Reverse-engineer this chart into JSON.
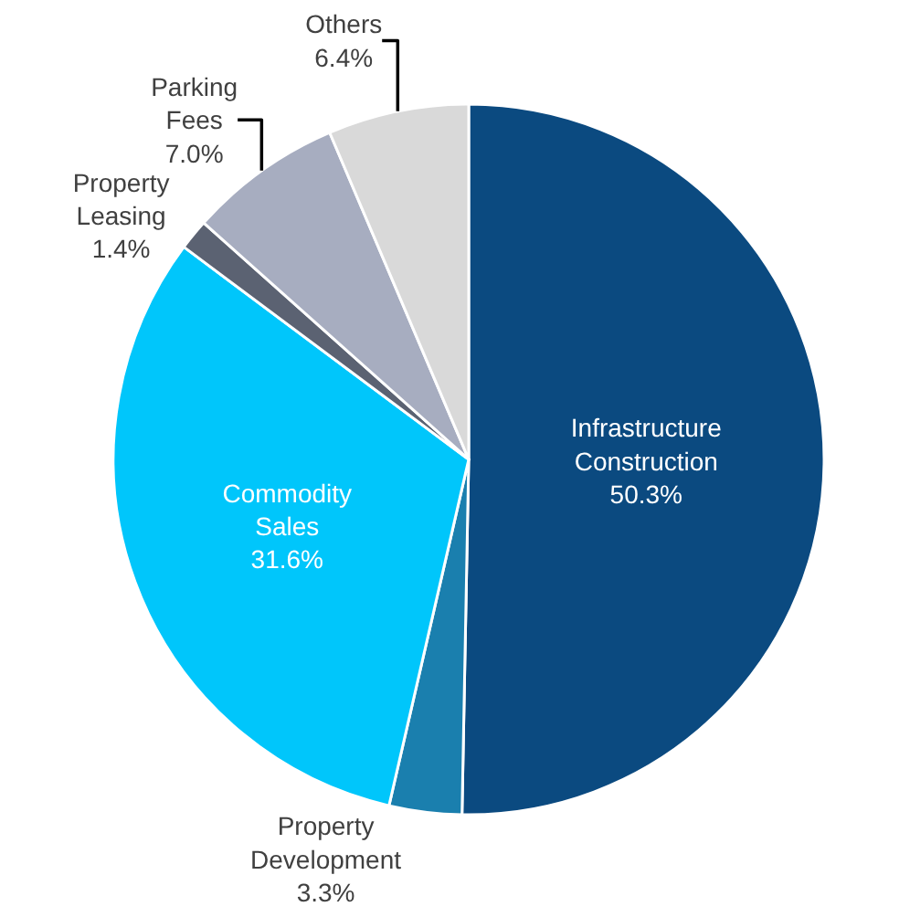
{
  "chart_data": {
    "type": "pie",
    "categories": [
      "Infrastructure Construction",
      "Property Development",
      "Commodity Sales",
      "Property Leasing",
      "Parking Fees",
      "Others"
    ],
    "values": [
      50.3,
      3.3,
      31.6,
      1.4,
      7.0,
      6.4
    ],
    "value_labels": [
      "50.3%",
      "3.3%",
      "31.6%",
      "1.4%",
      "7.0%",
      "6.4%"
    ],
    "colors": [
      "#0b4a80",
      "#1a7fae",
      "#00c6fb",
      "#5b6272",
      "#a7adc0",
      "#d9d9d9"
    ],
    "legend": false
  }
}
